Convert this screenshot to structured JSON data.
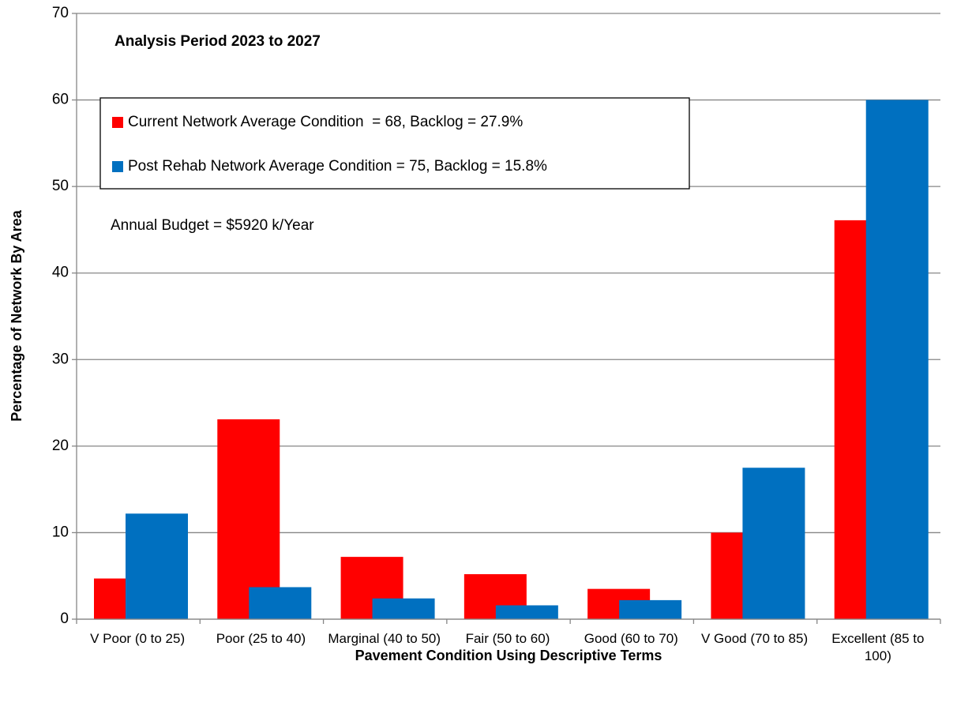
{
  "chart_data": {
    "type": "bar",
    "title": "Analysis Period 2023 to 2027",
    "annotation": "Annual Budget = $5920 k/Year",
    "x_label": "Pavement Condition Using Descriptive Terms",
    "y_label": "Percentage of Network By Area",
    "categories": [
      "V Poor (0 to 25)",
      "Poor (25 to 40)",
      "Marginal (40 to 50)",
      "Fair (50 to 60)",
      "Good (60 to 70)",
      "V Good (70 to 85)",
      "Excellent (85 to 100)"
    ],
    "series": [
      {
        "name": "Current Network Average Condition  = 68, Backlog = 27.9%",
        "color": "#ff0000",
        "values": [
          4.7,
          23.1,
          7.2,
          5.2,
          3.5,
          10.0,
          46.1
        ]
      },
      {
        "name": "Post Rehab Network Average Condition = 75, Backlog = 15.8%",
        "color": "#0070c0",
        "values": [
          12.2,
          3.7,
          2.4,
          1.6,
          2.2,
          17.5,
          60.0
        ]
      }
    ],
    "ylim": [
      0,
      70
    ],
    "yticks": [
      0,
      10,
      20,
      30,
      40,
      50,
      60,
      70
    ],
    "grid": true
  }
}
